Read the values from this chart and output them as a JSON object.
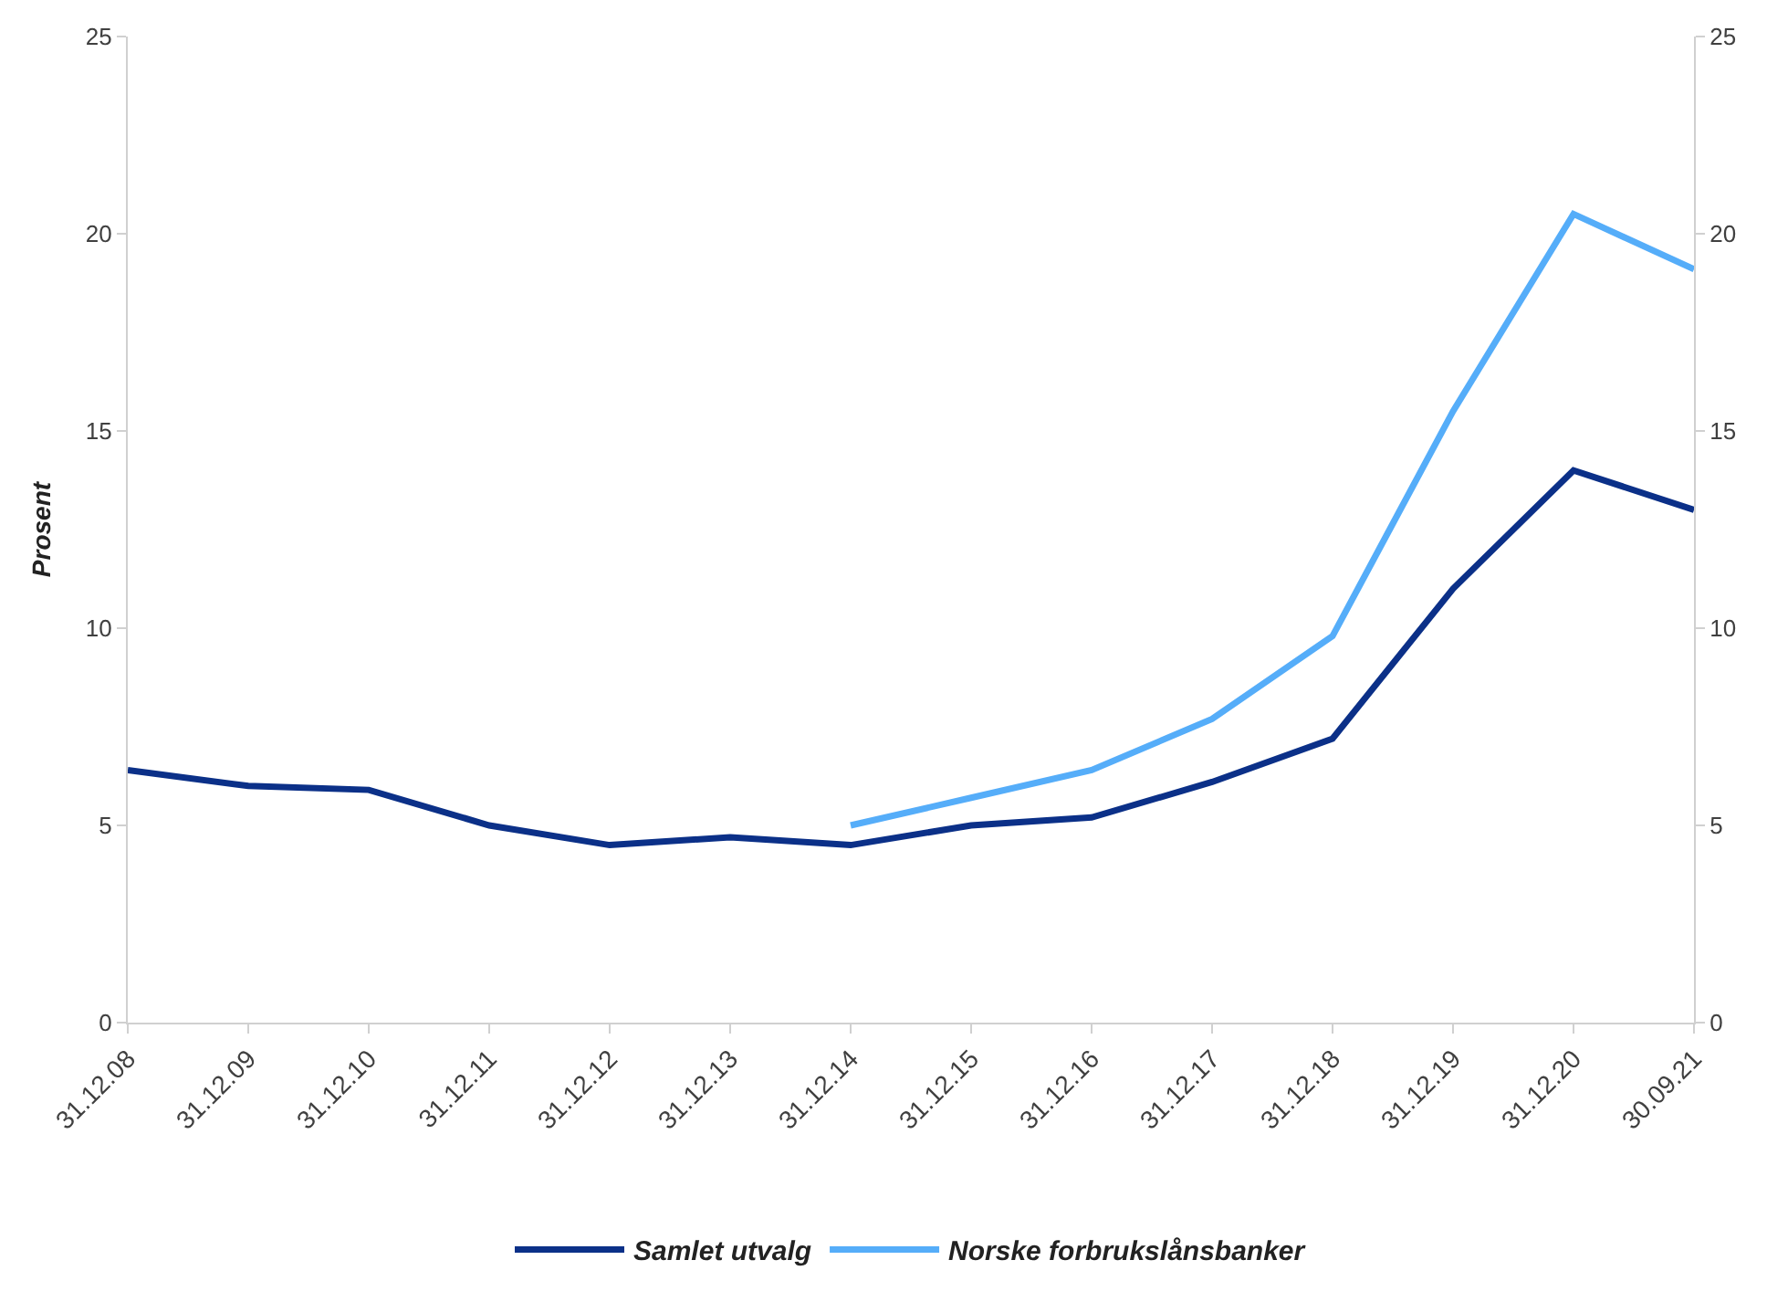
{
  "chart_data": {
    "type": "line",
    "ylabel": "Prosent",
    "categories": [
      "31.12.08",
      "31.12.09",
      "31.12.10",
      "31.12.11",
      "31.12.12",
      "31.12.13",
      "31.12.14",
      "31.12.15",
      "31.12.16",
      "31.12.17",
      "31.12.18",
      "31.12.19",
      "31.12.20",
      "30.09.21"
    ],
    "series": [
      {
        "name": "Samlet utvalg",
        "color": "#0b3088",
        "values": [
          6.4,
          6.0,
          5.9,
          5.0,
          4.5,
          4.7,
          4.5,
          5.0,
          5.2,
          6.1,
          7.2,
          11.0,
          14.0,
          13.0
        ]
      },
      {
        "name": "Norske forbrukslånsbanker",
        "color": "#55adf9",
        "values": [
          null,
          null,
          null,
          null,
          null,
          null,
          5.0,
          5.7,
          6.4,
          7.7,
          9.8,
          15.5,
          20.5,
          19.1
        ]
      }
    ],
    "ylim": [
      0,
      25
    ],
    "yticks": [
      0,
      5,
      10,
      15,
      20,
      25
    ],
    "y2lim": [
      0,
      25
    ],
    "y2ticks": [
      0,
      5,
      10,
      15,
      20,
      25
    ],
    "legend": "bottom",
    "marker": "none",
    "line_style": "solid"
  }
}
